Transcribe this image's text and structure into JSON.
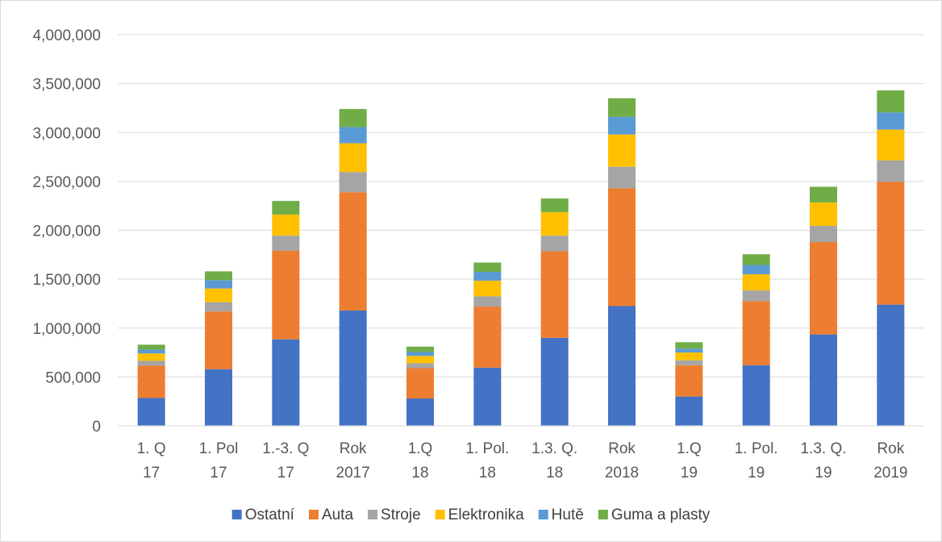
{
  "chart_data": {
    "type": "bar",
    "stacked": true,
    "title": "",
    "xlabel": "",
    "ylabel": "",
    "ylim": [
      0,
      4000000
    ],
    "y_ticks": [
      0,
      500000,
      1000000,
      1500000,
      2000000,
      2500000,
      3000000,
      3500000,
      4000000
    ],
    "y_tick_labels": [
      "0",
      "500,000",
      "1,000,000",
      "1,500,000",
      "2,000,000",
      "2,500,000",
      "3,000,000",
      "3,500,000",
      "4,000,000"
    ],
    "grid": "horizontal",
    "legend_position": "bottom",
    "categories": [
      [
        "1. Q",
        "17"
      ],
      [
        "1. Pol",
        "17"
      ],
      [
        "1.-3. Q",
        "17"
      ],
      [
        "Rok",
        "2017"
      ],
      [
        "1.Q",
        "18"
      ],
      [
        "1. Pol.",
        "18"
      ],
      [
        "1.3. Q.",
        "18"
      ],
      [
        "Rok",
        "2018"
      ],
      [
        "1.Q",
        "19"
      ],
      [
        "1. Pol.",
        "19"
      ],
      [
        "1.3. Q.",
        "19"
      ],
      [
        "Rok",
        "2019"
      ]
    ],
    "series": [
      {
        "name": "Ostatní",
        "color": "#4472c4",
        "values": [
          285000,
          580000,
          885000,
          1180000,
          280000,
          595000,
          900000,
          1225000,
          300000,
          620000,
          935000,
          1240000
        ]
      },
      {
        "name": "Auta",
        "color": "#ed7d31",
        "values": [
          330000,
          590000,
          905000,
          1210000,
          310000,
          625000,
          885000,
          1205000,
          320000,
          655000,
          945000,
          1255000
        ]
      },
      {
        "name": "Stroje",
        "color": "#a5a5a5",
        "values": [
          50000,
          95000,
          155000,
          205000,
          50000,
          105000,
          160000,
          220000,
          50000,
          110000,
          165000,
          220000
        ]
      },
      {
        "name": "Elektronika",
        "color": "#ffc000",
        "values": [
          75000,
          140000,
          215000,
          295000,
          75000,
          160000,
          240000,
          330000,
          80000,
          165000,
          240000,
          315000
        ]
      },
      {
        "name": "Hutě",
        "color": "#5b9bd5",
        "values": [
          40000,
          85000,
          1,
          165000,
          40000,
          90000,
          1,
          180000,
          40000,
          95000,
          1,
          175000
        ]
      },
      {
        "name": "Guma a plasty",
        "color": "#70ad47",
        "values": [
          50000,
          90000,
          140000,
          185000,
          55000,
          95000,
          140000,
          190000,
          65000,
          110000,
          160000,
          225000
        ]
      }
    ]
  }
}
